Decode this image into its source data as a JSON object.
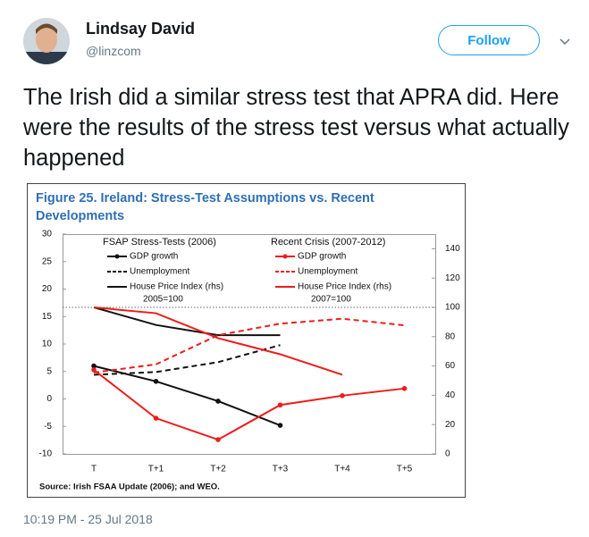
{
  "tweet": {
    "name": "Lindsay David",
    "handle": "@linzcom",
    "follow": "Follow",
    "text": "The Irish did a similar stress test that APRA did. Here were the results of the stress test versus what actually happened",
    "time": "10:19 PM - 25 Jul 2018"
  },
  "chart_data": {
    "type": "line",
    "title": "Figure 25. Ireland: Stress-Test Assumptions vs. Recent Developments",
    "source": "Source: Irish FSAA Update (2006); and WEO.",
    "categories": [
      "T",
      "T+1",
      "T+2",
      "T+3",
      "T+4",
      "T+5"
    ],
    "ylim": [
      -10,
      30
    ],
    "yticks": [
      -10,
      -5,
      0,
      5,
      10,
      15,
      20,
      25,
      30
    ],
    "y2lim": [
      0,
      150
    ],
    "y2ticks": [
      0,
      20,
      40,
      60,
      80,
      100,
      120,
      140
    ],
    "reference_line_y2": 100,
    "legend_groups": [
      {
        "title": "FSAP Stress-Tests (2006)",
        "note": "2005=100"
      },
      {
        "title": "Recent Crisis (2007-2012)",
        "note": "2007=100"
      }
    ],
    "series": [
      {
        "name": "GDP growth",
        "color": "#111111",
        "dash": false,
        "markers": true,
        "values": [
          6,
          3.2,
          -0.4,
          -4.8,
          null,
          null
        ]
      },
      {
        "name": "Unemployment",
        "color": "#111111",
        "dash": true,
        "markers": false,
        "values": [
          4.4,
          4.9,
          6.7,
          9.8,
          null,
          null
        ]
      },
      {
        "name": "House Price Index (rhs)",
        "color": "#111111",
        "dash": false,
        "markers": false,
        "axis": "y2",
        "values": [
          100,
          88,
          81,
          81,
          null,
          null
        ]
      },
      {
        "name": "GDP growth",
        "color": "#ee1c1c",
        "dash": false,
        "markers": true,
        "values": [
          5.3,
          -3.5,
          -7.4,
          -1.1,
          0.6,
          1.9
        ]
      },
      {
        "name": "Unemployment",
        "color": "#ee1c1c",
        "dash": true,
        "markers": false,
        "values": [
          4.8,
          6.3,
          11.6,
          13.7,
          14.6,
          13.4
        ]
      },
      {
        "name": "House Price Index (rhs)",
        "color": "#ee1c1c",
        "dash": false,
        "markers": false,
        "axis": "y2",
        "values": [
          100,
          96,
          79,
          68,
          54,
          null
        ]
      }
    ]
  }
}
